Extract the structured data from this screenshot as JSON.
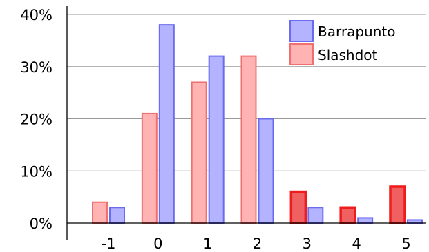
{
  "chart_data": {
    "type": "bar",
    "categories": [
      "-1",
      "0",
      "1",
      "2",
      "3",
      "4",
      "5"
    ],
    "series": [
      {
        "name": "Slashdot",
        "values": [
          4,
          21,
          27,
          32,
          6,
          3,
          7
        ]
      },
      {
        "name": "Barrapunto",
        "values": [
          3,
          38,
          32,
          20,
          3,
          1,
          0.6
        ]
      }
    ],
    "y_ticks": [
      {
        "value": 0,
        "label": "0%"
      },
      {
        "value": 10,
        "label": "10%"
      },
      {
        "value": 20,
        "label": "20%"
      },
      {
        "value": 30,
        "label": "30%"
      },
      {
        "value": 40,
        "label": "40%"
      }
    ],
    "ylim": [
      0,
      40
    ],
    "grid": "horizontal",
    "legend": {
      "placement": "top-right",
      "items": [
        {
          "label": "Barrapunto",
          "fill": "#b3b3ff",
          "stroke": "#6b6bf0"
        },
        {
          "label": "Slashdot",
          "fill": "#ffb3b3",
          "stroke": "#f07070"
        }
      ]
    },
    "colors": {
      "slashdot_fill": "#ffb3b3",
      "slashdot_stroke": "#f07070",
      "slashdot_highlight_fill": "#f06060",
      "slashdot_highlight_stroke": "#ee1c1c",
      "barrapunto_fill": "#b3b3ff",
      "barrapunto_stroke": "#6b6bf0",
      "grid": "#999999",
      "axis": "#000000"
    },
    "highlighted_categories": [
      "3",
      "4",
      "5"
    ]
  }
}
